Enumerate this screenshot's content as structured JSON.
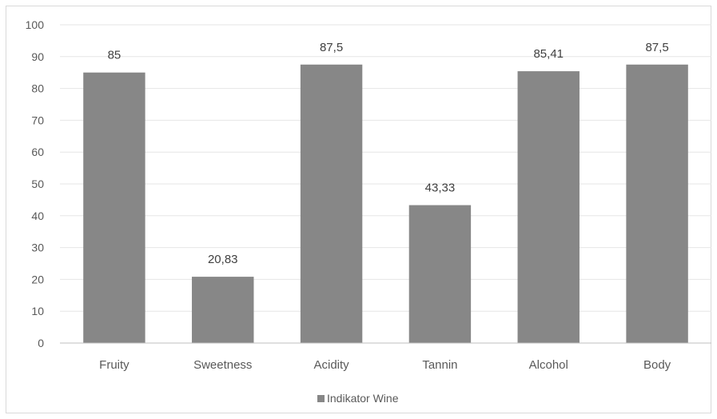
{
  "chart_data": {
    "type": "bar",
    "title": "",
    "xlabel": "",
    "ylabel": "",
    "categories": [
      "Fruity",
      "Sweetness",
      "Acidity",
      "Tannin",
      "Alcohol",
      "Body"
    ],
    "series": [
      {
        "name": "Indikator Wine",
        "values": [
          85,
          20.83,
          87.5,
          43.33,
          85.41,
          87.5
        ],
        "labels": [
          "85",
          "20,83",
          "87,5",
          "43,33",
          "85,41",
          "87,5"
        ],
        "color": "#878787"
      }
    ],
    "ylim": [
      0,
      100
    ],
    "yticks": [
      0,
      10,
      20,
      30,
      40,
      50,
      60,
      70,
      80,
      90,
      100
    ],
    "grid": true,
    "legend_position": "bottom"
  }
}
